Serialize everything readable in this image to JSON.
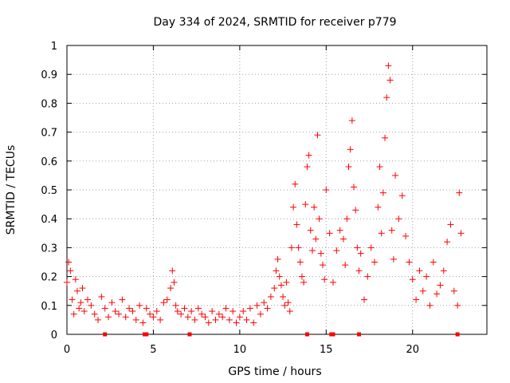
{
  "chart_data": {
    "type": "scatter",
    "title": "Day 334 of 2024, SRMTID for receiver p779",
    "xlabel": "GPS time / hours",
    "ylabel": "SRMTID / TECUs",
    "xlim": [
      0,
      24.3
    ],
    "ylim": [
      0,
      1
    ],
    "xticks": [
      0,
      5,
      10,
      15,
      20
    ],
    "yticks": [
      0,
      0.1,
      0.2,
      0.3,
      0.4,
      0.5,
      0.6,
      0.7,
      0.8,
      0.9,
      1
    ],
    "x_tick_labels": [
      "0",
      "5",
      "10",
      "15",
      "20"
    ],
    "y_tick_labels": [
      "0",
      "0.1",
      "0.2",
      "0.3",
      "0.4",
      "0.5",
      "0.6",
      "0.7",
      "0.8",
      "0.9",
      "1"
    ],
    "grid": true,
    "marker": "+",
    "color": "#ff0000",
    "baseline_color": "#ff0000",
    "series": [
      {
        "name": "SRMTID",
        "x": [
          0.0,
          0.1,
          0.2,
          0.3,
          0.4,
          0.5,
          0.6,
          0.7,
          0.8,
          0.9,
          1.0,
          1.2,
          1.4,
          1.6,
          1.8,
          2.0,
          2.2,
          2.4,
          2.6,
          2.8,
          3.0,
          3.2,
          3.4,
          3.6,
          3.8,
          4.0,
          4.2,
          4.4,
          4.6,
          4.8,
          5.0,
          5.2,
          5.4,
          5.6,
          5.8,
          6.0,
          6.1,
          6.2,
          6.3,
          6.4,
          6.6,
          6.8,
          7.0,
          7.2,
          7.4,
          7.6,
          7.8,
          8.0,
          8.2,
          8.4,
          8.6,
          8.8,
          9.0,
          9.2,
          9.4,
          9.6,
          9.8,
          10.0,
          10.2,
          10.4,
          10.6,
          10.8,
          11.0,
          11.2,
          11.4,
          11.6,
          11.8,
          12.0,
          12.1,
          12.2,
          12.3,
          12.4,
          12.5,
          12.6,
          12.7,
          12.8,
          12.9,
          13.0,
          13.1,
          13.2,
          13.3,
          13.4,
          13.5,
          13.6,
          13.7,
          13.8,
          13.9,
          14.0,
          14.1,
          14.2,
          14.3,
          14.4,
          14.5,
          14.6,
          14.7,
          14.8,
          14.9,
          15.0,
          15.2,
          15.4,
          15.6,
          15.8,
          16.0,
          16.1,
          16.2,
          16.3,
          16.4,
          16.5,
          16.6,
          16.7,
          16.8,
          16.9,
          17.0,
          17.2,
          17.4,
          17.6,
          17.8,
          18.0,
          18.1,
          18.2,
          18.3,
          18.4,
          18.5,
          18.6,
          18.7,
          18.8,
          18.9,
          19.0,
          19.2,
          19.4,
          19.6,
          19.8,
          20.0,
          20.2,
          20.4,
          20.6,
          20.8,
          21.0,
          21.2,
          21.4,
          21.6,
          21.8,
          22.0,
          22.2,
          22.4,
          22.6,
          22.7,
          22.8
        ],
        "y": [
          0.18,
          0.25,
          0.22,
          0.12,
          0.07,
          0.19,
          0.15,
          0.09,
          0.11,
          0.16,
          0.08,
          0.12,
          0.1,
          0.07,
          0.05,
          0.13,
          0.09,
          0.06,
          0.11,
          0.08,
          0.07,
          0.12,
          0.06,
          0.09,
          0.08,
          0.05,
          0.1,
          0.04,
          0.09,
          0.07,
          0.06,
          0.08,
          0.05,
          0.11,
          0.12,
          0.16,
          0.22,
          0.18,
          0.1,
          0.08,
          0.07,
          0.09,
          0.06,
          0.08,
          0.05,
          0.09,
          0.07,
          0.06,
          0.04,
          0.08,
          0.05,
          0.07,
          0.06,
          0.09,
          0.05,
          0.08,
          0.04,
          0.06,
          0.08,
          0.05,
          0.09,
          0.04,
          0.1,
          0.07,
          0.11,
          0.09,
          0.13,
          0.16,
          0.22,
          0.26,
          0.2,
          0.17,
          0.13,
          0.1,
          0.18,
          0.11,
          0.08,
          0.3,
          0.44,
          0.52,
          0.38,
          0.3,
          0.25,
          0.2,
          0.18,
          0.45,
          0.58,
          0.62,
          0.36,
          0.29,
          0.44,
          0.33,
          0.69,
          0.4,
          0.28,
          0.24,
          0.19,
          0.5,
          0.35,
          0.18,
          0.29,
          0.36,
          0.33,
          0.24,
          0.4,
          0.58,
          0.64,
          0.74,
          0.51,
          0.43,
          0.3,
          0.22,
          0.28,
          0.12,
          0.2,
          0.3,
          0.25,
          0.44,
          0.58,
          0.35,
          0.49,
          0.68,
          0.82,
          0.93,
          0.88,
          0.36,
          0.26,
          0.55,
          0.4,
          0.48,
          0.34,
          0.25,
          0.19,
          0.12,
          0.22,
          0.15,
          0.2,
          0.1,
          0.25,
          0.14,
          0.17,
          0.22,
          0.32,
          0.38,
          0.15,
          0.1,
          0.49,
          0.35
        ],
        "baseline_markers_x": [
          2.2,
          4.5,
          4.6,
          7.1,
          13.9,
          15.3,
          15.4,
          16.9,
          22.6
        ]
      }
    ]
  }
}
